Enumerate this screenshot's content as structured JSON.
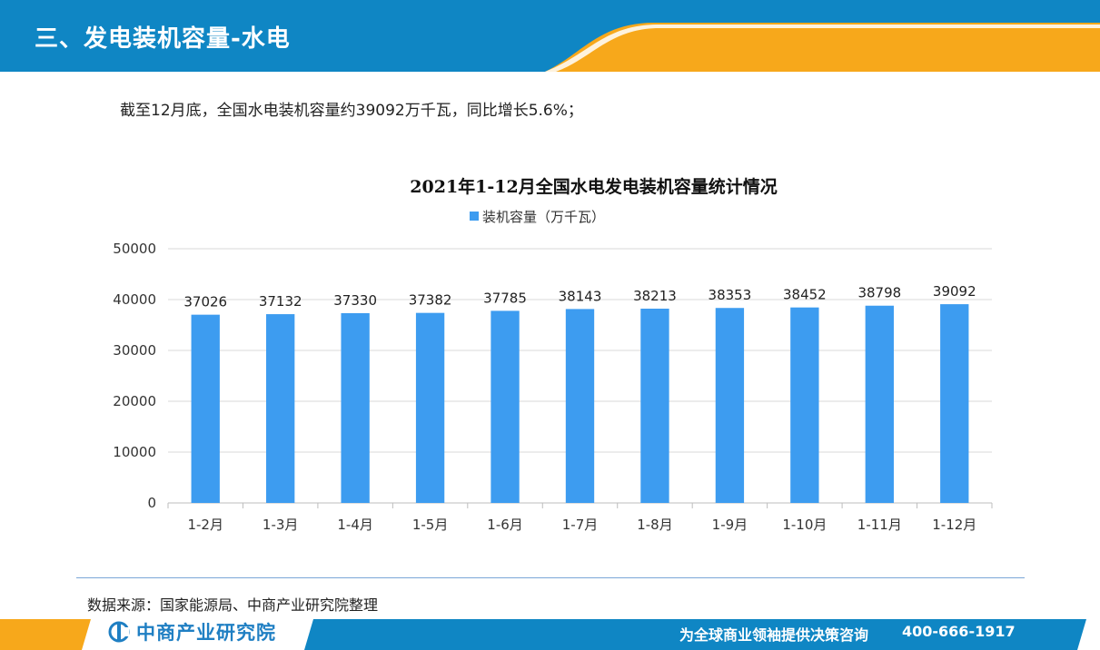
{
  "header": {
    "title": "三、发电装机容量-水电"
  },
  "summary": "截至12月底，全国水电装机容量约39092万千瓦，同比增长5.6%；",
  "chart_data": {
    "type": "bar",
    "title": "2021年1-12月全国水电发电装机容量统计情况",
    "categories": [
      "1-2月",
      "1-3月",
      "1-4月",
      "1-5月",
      "1-6月",
      "1-7月",
      "1-8月",
      "1-9月",
      "1-10月",
      "1-11月",
      "1-12月"
    ],
    "series": [
      {
        "name": "装机容量（万千瓦）",
        "values": [
          37026,
          37132,
          37330,
          37382,
          37785,
          38143,
          38213,
          38353,
          38452,
          38798,
          39092
        ],
        "color": "#3d9cf0"
      }
    ],
    "ylim": [
      0,
      50000
    ],
    "yticks": [
      "0",
      "10000",
      "20000",
      "30000",
      "40000",
      "50000"
    ],
    "grid": true,
    "legend_position": "top",
    "data_labels": true
  },
  "source": "数据来源：国家能源局、中商产业研究院整理",
  "footer": {
    "brand": "中商产业研究院",
    "slogan": "为全球商业领袖提供决策咨询",
    "phone": "400-666-1917"
  },
  "colors": {
    "header_blue": "#0f86c4",
    "header_orange": "#f7a81b",
    "bar_blue": "#3d9cf0",
    "brand_blue": "#1f7fc3"
  }
}
